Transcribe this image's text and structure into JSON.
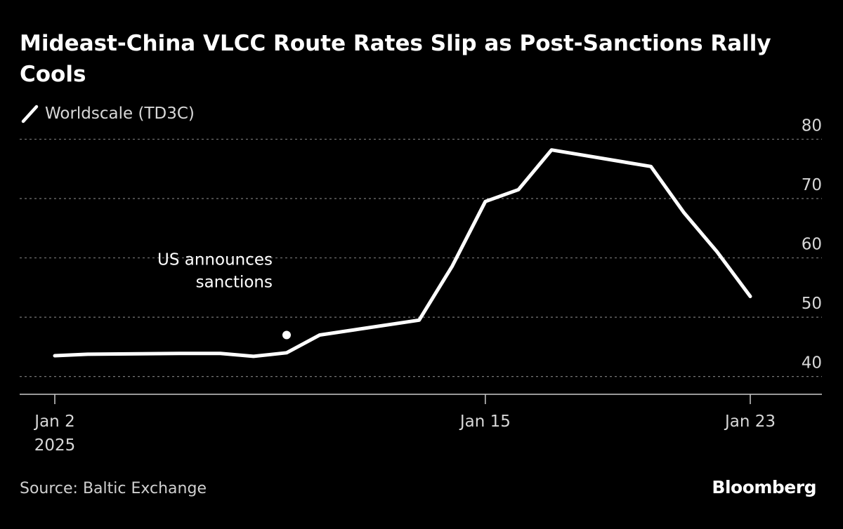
{
  "title": "Mideast-China VLCC Route Rates Slip as Post-Sanctions Rally Cools",
  "legend": {
    "label": "Worldscale (TD3C)"
  },
  "source": "Source: Baltic Exchange",
  "brand": "Bloomberg",
  "colors": {
    "background": "#000000",
    "line": "#ffffff",
    "grid": "#777777",
    "text": "#d8d8d8"
  },
  "chart_data": {
    "type": "line",
    "title": "Mideast-China VLCC Route Rates Slip as Post-Sanctions Rally Cools",
    "series": [
      {
        "name": "Worldscale (TD3C)",
        "x": [
          "2025-01-02",
          "2025-01-03",
          "2025-01-06",
          "2025-01-07",
          "2025-01-08",
          "2025-01-09",
          "2025-01-10",
          "2025-01-13",
          "2025-01-14",
          "2025-01-15",
          "2025-01-16",
          "2025-01-17",
          "2025-01-20",
          "2025-01-21",
          "2025-01-22",
          "2025-01-23"
        ],
        "values": [
          43.5,
          43.75,
          43.9,
          43.9,
          43.4,
          44.0,
          47.0,
          49.5,
          58.6,
          69.5,
          71.5,
          78.2,
          75.4,
          67.6,
          61.0,
          53.5
        ]
      }
    ],
    "y_ticks": [
      "40",
      "50",
      "60",
      "70",
      "80"
    ],
    "ylim": [
      37,
      81
    ],
    "y_axis_position": "right",
    "x_ticks": [
      {
        "date": "2025-01-02",
        "label": "Jan 2",
        "sublabel": "2025"
      },
      {
        "date": "2025-01-15",
        "label": "Jan 15",
        "sublabel": ""
      },
      {
        "date": "2025-01-23",
        "label": "Jan 23",
        "sublabel": ""
      }
    ],
    "grid": true,
    "legend_position": "top-left",
    "annotation": {
      "date": "2025-01-09",
      "value": 47.0,
      "lines": [
        "US announces",
        "sanctions"
      ]
    }
  }
}
